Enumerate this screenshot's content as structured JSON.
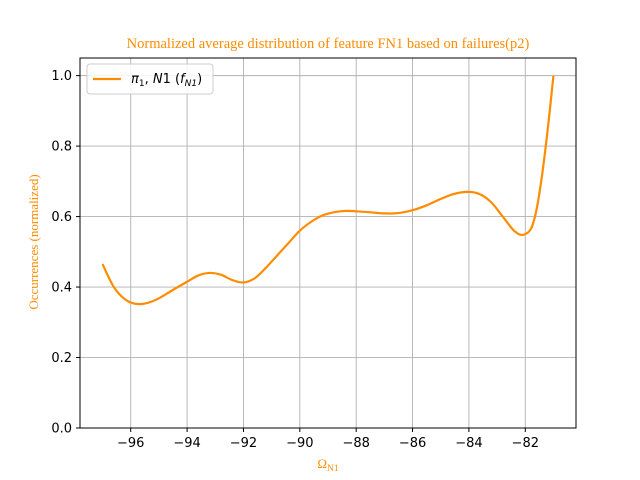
{
  "colors": {
    "accent": "#ff8c00",
    "grid": "#b0b0b0",
    "axis": "#000000"
  },
  "chart_data": {
    "type": "line",
    "title": "Normalized average distribution of feature FN1 based on failures(p2)",
    "xlabel": "Ω_N1",
    "ylabel": "Occurrences (normalized)",
    "xlim": [
      -97.8,
      -80.2
    ],
    "ylim": [
      0.0,
      1.05
    ],
    "grid": true,
    "legend_position": "top-left",
    "x_ticks": [
      -96,
      -94,
      -92,
      -90,
      -88,
      -86,
      -84,
      -82
    ],
    "x_tick_labels": [
      "−96",
      "−94",
      "−92",
      "−90",
      "−88",
      "−86",
      "−84",
      "−82"
    ],
    "y_ticks": [
      0.0,
      0.2,
      0.4,
      0.6,
      0.8,
      1.0
    ],
    "y_tick_labels": [
      "0.0",
      "0.2",
      "0.4",
      "0.6",
      "0.8",
      "1.0"
    ],
    "series": [
      {
        "name": "π1, N1 (fN1)",
        "color": "#ff8c00",
        "points": [
          [
            -97.0,
            0.465
          ],
          [
            -96.6,
            0.4
          ],
          [
            -96.2,
            0.365
          ],
          [
            -95.8,
            0.352
          ],
          [
            -95.4,
            0.355
          ],
          [
            -95.0,
            0.368
          ],
          [
            -94.5,
            0.392
          ],
          [
            -94.0,
            0.415
          ],
          [
            -93.6,
            0.433
          ],
          [
            -93.2,
            0.44
          ],
          [
            -92.8,
            0.435
          ],
          [
            -92.4,
            0.42
          ],
          [
            -92.0,
            0.413
          ],
          [
            -91.6,
            0.425
          ],
          [
            -91.2,
            0.455
          ],
          [
            -90.8,
            0.49
          ],
          [
            -90.4,
            0.525
          ],
          [
            -90.0,
            0.56
          ],
          [
            -89.6,
            0.585
          ],
          [
            -89.2,
            0.603
          ],
          [
            -88.8,
            0.612
          ],
          [
            -88.4,
            0.616
          ],
          [
            -88.0,
            0.615
          ],
          [
            -87.5,
            0.612
          ],
          [
            -87.0,
            0.609
          ],
          [
            -86.5,
            0.61
          ],
          [
            -86.0,
            0.618
          ],
          [
            -85.5,
            0.632
          ],
          [
            -85.0,
            0.65
          ],
          [
            -84.5,
            0.665
          ],
          [
            -84.0,
            0.67
          ],
          [
            -83.6,
            0.663
          ],
          [
            -83.2,
            0.64
          ],
          [
            -82.8,
            0.6
          ],
          [
            -82.4,
            0.56
          ],
          [
            -82.1,
            0.548
          ],
          [
            -81.8,
            0.565
          ],
          [
            -81.6,
            0.62
          ],
          [
            -81.4,
            0.72
          ],
          [
            -81.2,
            0.85
          ],
          [
            -81.0,
            1.0
          ]
        ]
      }
    ]
  }
}
